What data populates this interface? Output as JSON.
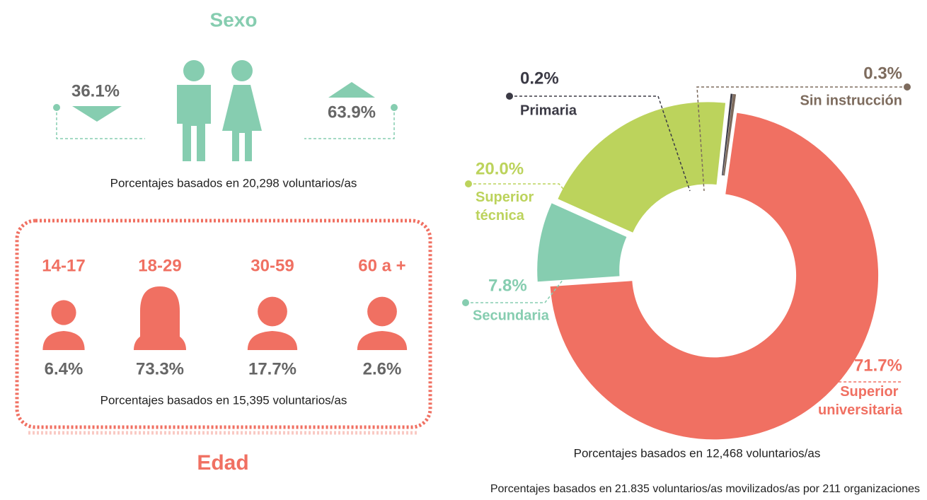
{
  "sexo": {
    "title": "Sexo",
    "hombres": "36.1%",
    "mujeres": "63.9%",
    "note": "Porcentajes basados en 20,298 voluntarios/as"
  },
  "edad": {
    "title": "Edad",
    "groups": [
      {
        "label": "14-17",
        "value": "6.4%"
      },
      {
        "label": "18-29",
        "value": "73.3%"
      },
      {
        "label": "30-59",
        "value": "17.7%"
      },
      {
        "label": "60 a +",
        "value": "2.6%"
      }
    ],
    "note": "Porcentajes basados en 15,395 voluntarios/as"
  },
  "chart_data": {
    "type": "pie",
    "categories": [
      "Superior universitaria",
      "Secundaria",
      "Superior técnica",
      "Primaria",
      "Sin instrucción"
    ],
    "values": [
      71.7,
      7.8,
      20.0,
      0.2,
      0.3
    ],
    "value_labels": [
      "71.7%",
      "7.8%",
      "20.0%",
      "0.2%",
      "0.3%"
    ],
    "colors": [
      "#f07062",
      "#86cdb0",
      "#bcd35c",
      "#3b3a45",
      "#7d6b5d"
    ],
    "note": "Porcentajes basados en 12,468 voluntarios/as"
  },
  "footer": "Porcentajes basados en 21.835 voluntarios/as movilizados/as por 211 organizaciones"
}
